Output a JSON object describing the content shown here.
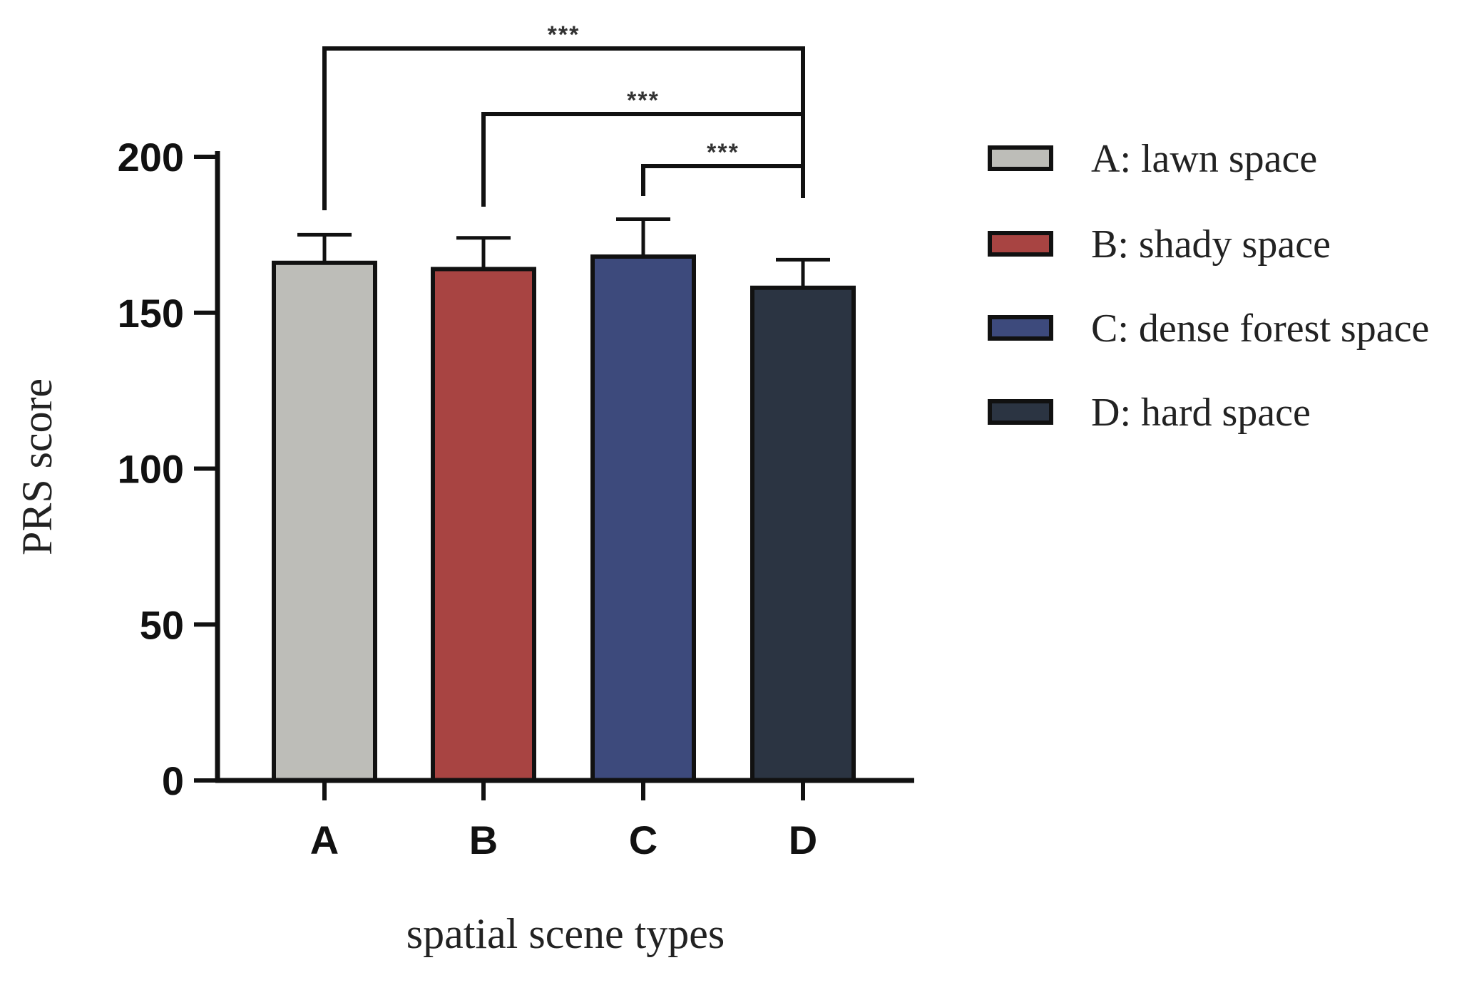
{
  "chart_data": {
    "type": "bar",
    "categories": [
      "A",
      "B",
      "C",
      "D"
    ],
    "values": [
      166,
      164,
      168,
      158
    ],
    "errors": [
      9,
      10,
      12,
      9
    ],
    "xlabel": "spatial scene types",
    "ylabel": "PRS score",
    "ylim": [
      0,
      200
    ],
    "yticks": [
      0,
      50,
      100,
      150,
      200
    ],
    "colors": [
      "#bdbdb8",
      "#a84442",
      "#3d4a7c",
      "#2b3442"
    ],
    "legend": {
      "position": "right",
      "entries": [
        "A: lawn space",
        "B: shady space",
        "C: dense forest space",
        "D: hard space"
      ]
    },
    "significance": [
      {
        "from": "A",
        "to": "D",
        "label": "***"
      },
      {
        "from": "B",
        "to": "D",
        "label": "***"
      },
      {
        "from": "C",
        "to": "D",
        "label": "***"
      }
    ],
    "grid": false
  }
}
